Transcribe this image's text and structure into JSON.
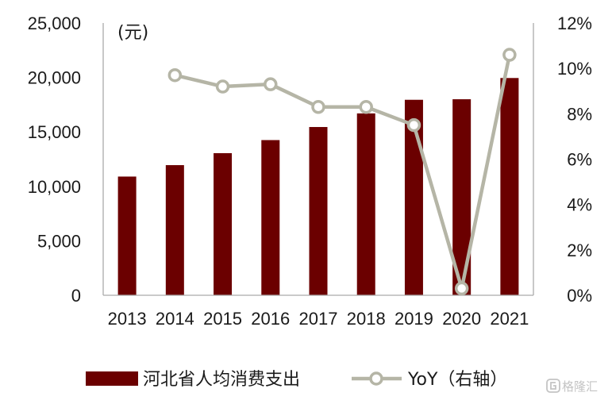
{
  "chart_data": {
    "type": "bar",
    "categories": [
      "2013",
      "2014",
      "2015",
      "2016",
      "2017",
      "2018",
      "2019",
      "2020",
      "2021"
    ],
    "series": [
      {
        "name": "河北省人均消费支出",
        "type": "bar",
        "axis": "left",
        "color": "#6b0000",
        "values": [
          10900,
          11950,
          13050,
          14250,
          15450,
          16700,
          17950,
          18000,
          19950
        ]
      },
      {
        "name": "YoY（右轴）",
        "type": "line",
        "axis": "right",
        "color": "#b5b5a6",
        "values": [
          null,
          9.7,
          9.2,
          9.3,
          8.3,
          8.3,
          7.5,
          0.3,
          10.6
        ]
      }
    ],
    "left_axis": {
      "unit_label": "(元)",
      "ylim": [
        0,
        25000
      ],
      "ticks": [
        0,
        5000,
        10000,
        15000,
        20000,
        25000
      ],
      "tick_labels": [
        "0",
        "5,000",
        "10,000",
        "15,000",
        "20,000",
        "25,000"
      ]
    },
    "right_axis": {
      "ylim": [
        0,
        12
      ],
      "ticks": [
        0,
        2,
        4,
        6,
        8,
        10,
        12
      ],
      "tick_labels": [
        "0%",
        "2%",
        "4%",
        "6%",
        "8%",
        "10%",
        "12%"
      ]
    },
    "grid": false,
    "legend": "bottom"
  },
  "watermark": {
    "text": "格隆汇",
    "icon": "glh-logo-icon"
  }
}
